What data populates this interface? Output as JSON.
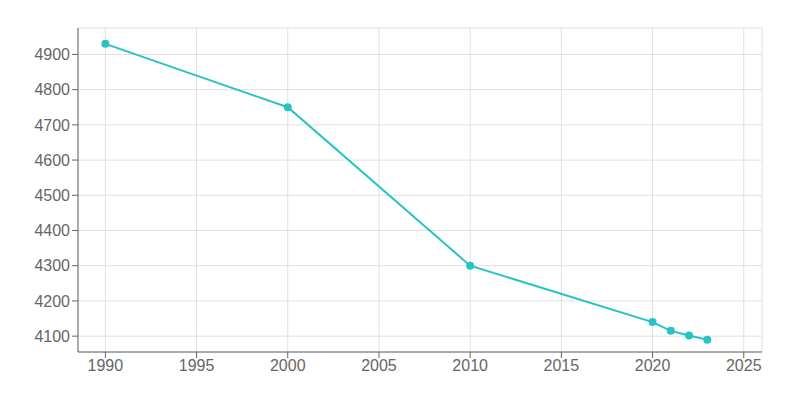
{
  "chart_data": {
    "type": "line",
    "x": [
      1990,
      2000,
      2010,
      2020,
      2021,
      2022,
      2023
    ],
    "values": [
      4930,
      4750,
      4300,
      4140,
      4115,
      4102,
      4090
    ],
    "color": "#28C4C4",
    "marker": "circle",
    "xlim": [
      1988.5,
      2026
    ],
    "ylim": [
      4055,
      4975
    ],
    "xticks": [
      1990,
      1995,
      2000,
      2005,
      2010,
      2015,
      2020,
      2025
    ],
    "yticks": [
      4100,
      4200,
      4300,
      4400,
      4500,
      4600,
      4700,
      4800,
      4900
    ],
    "grid": true
  }
}
